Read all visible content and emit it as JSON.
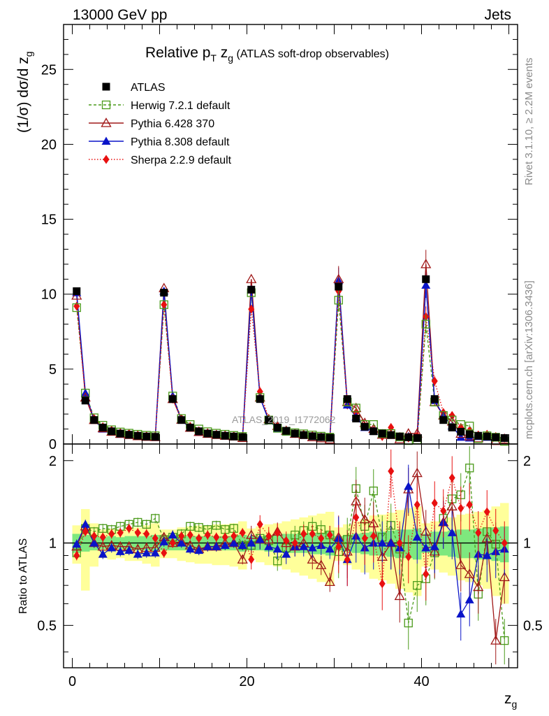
{
  "header": {
    "energy_label": "13000 GeV pp",
    "process_label": "Jets"
  },
  "side_labels": {
    "rivet": "Rivet 3.1.10, ≥ 2.2M events",
    "site": "mcplots.cern.ch [arXiv:1306.3436]"
  },
  "watermark": "ATLAS_2019_I1772062",
  "chart_data": [
    {
      "type": "scatter",
      "panel": "main",
      "title_main": "Relative p",
      "title_sub": "T",
      "title_z": " z",
      "title_zsub": "g",
      "title_rest": " (ATLAS soft-drop observables)",
      "ylabel": "(1/σ) dσ/d z",
      "ylabel_sub": "g",
      "xlabel": "z",
      "xlabel_sub": "g",
      "xlim": [
        -1,
        51
      ],
      "ylim": [
        0,
        28
      ],
      "yticks": [
        0,
        5,
        10,
        15,
        20,
        25
      ],
      "xticks": [
        0,
        20,
        40
      ],
      "legend_position": "top-left",
      "x": [
        0.5,
        1.5,
        2.5,
        3.5,
        4.5,
        5.5,
        6.5,
        7.5,
        8.5,
        9.5,
        10.5,
        11.5,
        12.5,
        13.5,
        14.5,
        15.5,
        16.5,
        17.5,
        18.5,
        19.5,
        20.5,
        21.5,
        22.5,
        23.5,
        24.5,
        25.5,
        26.5,
        27.5,
        28.5,
        29.5,
        30.5,
        31.5,
        32.5,
        33.5,
        34.5,
        35.5,
        36.5,
        37.5,
        38.5,
        39.5,
        40.5,
        41.5,
        42.5,
        43.5,
        44.5,
        45.5,
        46.5,
        47.5,
        48.5,
        49.5
      ],
      "series": [
        {
          "name": "ATLAS",
          "color": "#000000",
          "marker": "square-filled",
          "values": [
            10.2,
            2.9,
            1.6,
            1.1,
            0.85,
            0.7,
            0.62,
            0.55,
            0.5,
            0.48,
            10.1,
            3.0,
            1.6,
            1.1,
            0.85,
            0.7,
            0.62,
            0.55,
            0.5,
            0.46,
            10.3,
            3.0,
            1.6,
            1.1,
            0.88,
            0.7,
            0.6,
            0.52,
            0.46,
            0.42,
            10.5,
            3.0,
            1.7,
            1.15,
            0.85,
            0.7,
            0.6,
            0.5,
            0.45,
            0.4,
            11.0,
            3.0,
            1.6,
            1.1,
            0.82,
            0.65,
            0.55,
            0.5,
            0.45,
            0.4
          ]
        },
        {
          "name": "Herwig 7.2.1 default",
          "color": "#4a9a1a",
          "marker": "square-open",
          "values": [
            9.1,
            3.4,
            1.75,
            1.25,
            0.95,
            0.8,
            0.72,
            0.65,
            0.58,
            0.55,
            9.3,
            3.2,
            1.7,
            1.3,
            1.0,
            0.82,
            0.72,
            0.65,
            0.57,
            0.5,
            10.1,
            3.1,
            1.6,
            1.05,
            0.85,
            0.75,
            0.68,
            0.6,
            0.52,
            0.45,
            9.6,
            2.8,
            2.4,
            1.3,
            1.3,
            0.7,
            0.7,
            0.48,
            0.23,
            0.28,
            8.0,
            2.8,
            1.9,
            1.6,
            1.3,
            1.2,
            0.36,
            0.55,
            0.45,
            0.18
          ]
        },
        {
          "name": "Pythia 6.428 370",
          "color": "#a01818",
          "marker": "triangle-open",
          "values": [
            9.9,
            3.1,
            1.6,
            1.05,
            0.82,
            0.68,
            0.6,
            0.52,
            0.48,
            0.46,
            10.4,
            3.0,
            1.62,
            1.08,
            0.8,
            0.68,
            0.6,
            0.55,
            0.5,
            0.4,
            11.0,
            3.1,
            1.65,
            1.2,
            0.88,
            0.68,
            0.6,
            0.45,
            0.38,
            0.3,
            11.0,
            2.8,
            2.4,
            1.4,
            1.0,
            0.62,
            0.6,
            0.32,
            0.7,
            0.7,
            12.0,
            2.8,
            1.9,
            1.5,
            0.68,
            0.5,
            0.38,
            0.52,
            0.2,
            0.3
          ]
        },
        {
          "name": "Pythia 8.308 default",
          "color": "#0a14c8",
          "marker": "triangle-filled",
          "values": [
            10.1,
            3.4,
            1.6,
            1.0,
            0.82,
            0.65,
            0.58,
            0.5,
            0.46,
            0.44,
            10.2,
            3.2,
            1.6,
            1.05,
            0.8,
            0.68,
            0.6,
            0.54,
            0.5,
            0.45,
            10.3,
            3.1,
            1.55,
            1.05,
            0.8,
            0.68,
            0.58,
            0.5,
            0.45,
            0.4,
            10.9,
            2.6,
            1.8,
            1.1,
            0.85,
            0.7,
            0.6,
            0.48,
            0.5,
            0.42,
            10.6,
            2.9,
            1.9,
            1.2,
            0.45,
            0.4,
            0.5,
            0.45,
            0.42,
            0.38
          ]
        },
        {
          "name": "Sherpa 2.2.9 default",
          "color": "#e81010",
          "marker": "diamond-filled",
          "values": [
            9.2,
            3.2,
            1.7,
            1.15,
            0.92,
            0.76,
            0.7,
            0.6,
            0.54,
            0.5,
            9.3,
            3.0,
            1.7,
            1.18,
            0.88,
            0.75,
            0.65,
            0.58,
            0.53,
            0.5,
            9.0,
            3.5,
            1.7,
            1.2,
            0.9,
            0.7,
            0.65,
            0.56,
            0.48,
            0.45,
            10.2,
            2.6,
            2.1,
            1.2,
            0.9,
            0.5,
            1.1,
            0.5,
            0.4,
            0.55,
            8.5,
            4.2,
            2.1,
            1.9,
            1.1,
            0.9,
            0.6,
            0.65,
            0.5,
            0.4
          ]
        }
      ]
    },
    {
      "type": "scatter",
      "panel": "ratio",
      "ylabel": "Ratio to ATLAS",
      "xlabel": "z",
      "xlabel_sub": "g",
      "xlim": [
        -1,
        51
      ],
      "ylim": [
        0.35,
        2.3
      ],
      "yticks": [
        0.5,
        1,
        2
      ],
      "xticks": [
        0,
        20,
        40
      ],
      "x": [
        0.5,
        1.5,
        2.5,
        3.5,
        4.5,
        5.5,
        6.5,
        7.5,
        8.5,
        9.5,
        10.5,
        11.5,
        12.5,
        13.5,
        14.5,
        15.5,
        16.5,
        17.5,
        18.5,
        19.5,
        20.5,
        21.5,
        22.5,
        23.5,
        24.5,
        25.5,
        26.5,
        27.5,
        28.5,
        29.5,
        30.5,
        31.5,
        32.5,
        33.5,
        34.5,
        35.5,
        36.5,
        37.5,
        38.5,
        39.5,
        40.5,
        41.5,
        42.5,
        43.5,
        44.5,
        45.5,
        46.5,
        47.5,
        48.5,
        49.5
      ],
      "bands": {
        "stat_color": "#7ee87e",
        "total_color": "#ffff9a",
        "stat_halfwidth": [
          0.08,
          0.07,
          0.06,
          0.05,
          0.06,
          0.05,
          0.06,
          0.06,
          0.06,
          0.07,
          0.06,
          0.06,
          0.06,
          0.06,
          0.06,
          0.06,
          0.06,
          0.06,
          0.06,
          0.07,
          0.06,
          0.06,
          0.07,
          0.07,
          0.08,
          0.08,
          0.08,
          0.09,
          0.09,
          0.1,
          0.06,
          0.07,
          0.08,
          0.09,
          0.1,
          0.1,
          0.11,
          0.12,
          0.12,
          0.13,
          0.08,
          0.1,
          0.1,
          0.11,
          0.12,
          0.12,
          0.13,
          0.13,
          0.14,
          0.15
        ],
        "total_halfwidth": [
          0.16,
          0.33,
          0.18,
          0.12,
          0.13,
          0.12,
          0.14,
          0.14,
          0.16,
          0.18,
          0.12,
          0.12,
          0.14,
          0.15,
          0.16,
          0.16,
          0.17,
          0.17,
          0.18,
          0.2,
          0.13,
          0.15,
          0.17,
          0.18,
          0.2,
          0.22,
          0.24,
          0.26,
          0.28,
          0.3,
          0.14,
          0.17,
          0.2,
          0.22,
          0.26,
          0.27,
          0.29,
          0.32,
          0.34,
          0.36,
          0.18,
          0.2,
          0.22,
          0.24,
          0.27,
          0.28,
          0.3,
          0.32,
          0.36,
          0.4
        ]
      },
      "series": [
        {
          "name": "Herwig 7.2.1 default",
          "color": "#4a9a1a",
          "marker": "square-open",
          "values": [
            0.92,
            1.13,
            1.1,
            1.13,
            1.12,
            1.15,
            1.17,
            1.19,
            1.17,
            1.23,
            1.03,
            1.05,
            1.08,
            1.15,
            1.14,
            1.12,
            1.16,
            1.12,
            1.13,
            0.98,
            0.98,
            1.04,
            1.02,
            0.86,
            0.96,
            1.07,
            1.11,
            1.15,
            1.12,
            1.07,
            0.93,
            1.03,
            1.58,
            1.15,
            1.55,
            1.05,
            1.16,
            0.95,
            0.51,
            0.7,
            0.74,
            0.92,
            1.23,
            1.45,
            1.5,
            1.88,
            0.65,
            1.1,
            0.99,
            0.44
          ]
        },
        {
          "name": "Pythia 6.428 370",
          "color": "#a01818",
          "marker": "triangle-open",
          "values": [
            0.97,
            1.15,
            1.0,
            0.97,
            0.98,
            0.97,
            0.97,
            0.95,
            0.96,
            0.96,
            1.05,
            1.0,
            1.01,
            0.98,
            0.95,
            0.97,
            0.97,
            1.0,
            1.0,
            0.87,
            1.07,
            1.03,
            1.03,
            1.1,
            1.0,
            0.97,
            1.0,
            0.87,
            0.83,
            0.72,
            1.05,
            0.93,
            1.42,
            1.22,
            1.18,
            0.89,
            1.0,
            0.64,
            1.57,
            1.8,
            1.1,
            0.93,
            1.19,
            1.36,
            0.83,
            0.77,
            0.69,
            1.04,
            0.44,
            0.75
          ]
        },
        {
          "name": "Pythia 8.308 default",
          "color": "#0a14c8",
          "marker": "triangle-filled",
          "values": [
            0.99,
            1.17,
            1.0,
            0.91,
            0.96,
            0.93,
            0.94,
            0.91,
            0.92,
            0.92,
            1.01,
            1.07,
            1.0,
            0.95,
            0.94,
            0.97,
            0.97,
            0.98,
            1.0,
            0.98,
            1.0,
            1.03,
            0.97,
            0.95,
            0.91,
            0.97,
            0.97,
            0.96,
            0.98,
            0.95,
            1.04,
            0.87,
            1.06,
            0.96,
            1.0,
            1.0,
            1.0,
            0.96,
            1.61,
            1.05,
            0.96,
            0.97,
            1.19,
            1.09,
            0.55,
            0.62,
            0.91,
            0.9,
            0.93,
            0.95
          ]
        },
        {
          "name": "Sherpa 2.2.9 default",
          "color": "#e81010",
          "marker": "diamond-filled",
          "values": [
            0.9,
            1.1,
            1.06,
            1.05,
            1.08,
            1.09,
            1.13,
            1.09,
            1.08,
            1.04,
            0.92,
            1.0,
            1.06,
            1.07,
            1.04,
            1.07,
            1.05,
            1.05,
            1.06,
            1.09,
            0.87,
            1.17,
            1.06,
            1.09,
            1.02,
            1.0,
            1.08,
            1.08,
            1.04,
            1.07,
            0.97,
            0.87,
            1.24,
            1.04,
            1.06,
            0.71,
            1.83,
            1.0,
            0.89,
            1.38,
            0.77,
            1.4,
            1.31,
            1.73,
            1.34,
            1.38,
            1.09,
            1.3,
            1.11,
            1.0
          ]
        }
      ]
    }
  ]
}
